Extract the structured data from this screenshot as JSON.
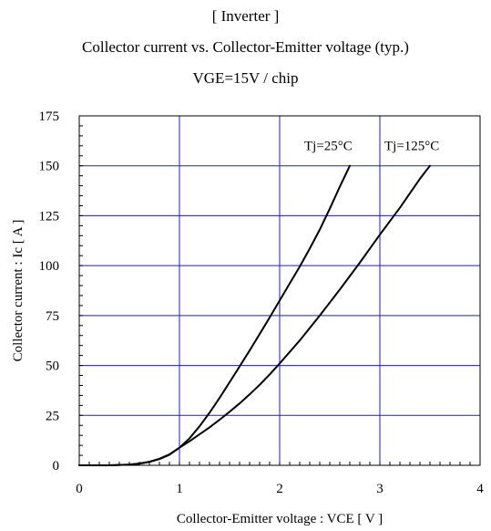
{
  "chart_data": {
    "type": "line",
    "title": "[ Inverter ]",
    "subtitle": "Collector current vs. Collector-Emitter voltage (typ.)",
    "condition": "VGE=15V / chip",
    "xlabel": "Collector-Emitter voltage : VCE [ V ]",
    "ylabel": "Collector current : Ic [ A ]",
    "xlim": [
      0,
      4
    ],
    "ylim": [
      0,
      175
    ],
    "x_ticks": [
      "0",
      "1",
      "2",
      "3",
      "4"
    ],
    "y_ticks": [
      "0",
      "25",
      "50",
      "75",
      "100",
      "125",
      "150",
      "175"
    ],
    "grid": true,
    "series": [
      {
        "name": "Tj=25°C",
        "x": [
          0,
          0.3,
          0.5,
          0.6,
          0.7,
          0.8,
          0.9,
          1.0,
          1.1,
          1.2,
          1.3,
          1.4,
          1.5,
          1.6,
          1.7,
          1.8,
          1.9,
          2.0,
          2.1,
          2.2,
          2.3,
          2.4,
          2.5,
          2.6,
          2.7
        ],
        "values": [
          0,
          0,
          0.3,
          0.8,
          1.7,
          3.1,
          5.3,
          8.8,
          13.5,
          19.5,
          26.3,
          33.7,
          41.6,
          49.5,
          57.5,
          65.7,
          74.0,
          82.5,
          91.0,
          99.5,
          108.5,
          118.0,
          128.5,
          139.5,
          150.0
        ]
      },
      {
        "name": "Tj=125°C",
        "x": [
          0,
          0.3,
          0.5,
          0.6,
          0.7,
          0.8,
          0.9,
          1.0,
          1.1,
          1.2,
          1.3,
          1.4,
          1.5,
          1.6,
          1.7,
          1.8,
          1.9,
          2.0,
          2.2,
          2.4,
          2.6,
          2.8,
          3.0,
          3.2,
          3.4,
          3.5
        ],
        "values": [
          0,
          0,
          0.3,
          0.9,
          1.8,
          3.3,
          5.5,
          8.8,
          12.0,
          15.5,
          19.0,
          22.8,
          26.8,
          31.0,
          35.5,
          40.3,
          45.5,
          51.0,
          62.5,
          75.0,
          88.0,
          101.5,
          115.5,
          129.0,
          143.5,
          150.0
        ]
      }
    ]
  }
}
